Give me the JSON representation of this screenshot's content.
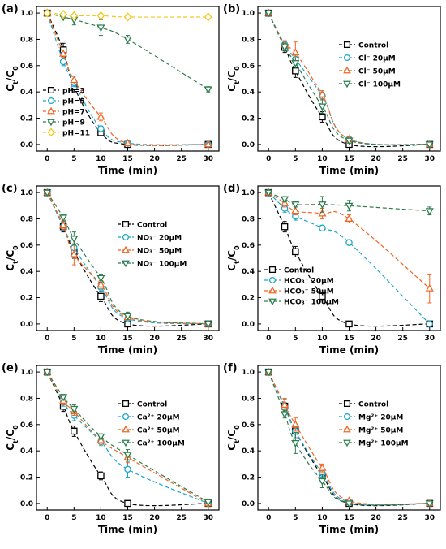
{
  "chart_data": [
    {
      "panel": "(a)",
      "type": "line",
      "xlabel": "Time (min)",
      "ylabel": "C_t/C_0",
      "ylabel_main": "C",
      "ylabel_sub1": "t",
      "ylabel_div": "/C",
      "ylabel_sub2": "0",
      "xlim": [
        -2,
        32
      ],
      "ylim": [
        -0.05,
        1.05
      ],
      "xticks": [
        "0",
        "5",
        "10",
        "15",
        "20",
        "25",
        "30"
      ],
      "yticks": [
        "0.0",
        "0.2",
        "0.4",
        "0.6",
        "0.8",
        "1.0"
      ],
      "legend_position": "bottom-left",
      "series": [
        {
          "name": "pH=3",
          "color": "#000000",
          "marker": "square",
          "x": [
            0,
            3,
            5,
            10,
            15,
            30
          ],
          "y": [
            1.0,
            0.72,
            0.44,
            0.09,
            0.0,
            0.0
          ],
          "err": [
            0.01,
            0.05,
            0.04,
            0.02,
            0.01,
            0.01
          ]
        },
        {
          "name": "pH=5",
          "color": "#1ba7c9",
          "marker": "circle",
          "x": [
            0,
            3,
            5,
            10,
            15,
            30
          ],
          "y": [
            1.0,
            0.63,
            0.47,
            0.12,
            0.01,
            0.0
          ],
          "err": [
            0.01,
            0.03,
            0.03,
            0.02,
            0.01,
            0.01
          ]
        },
        {
          "name": "pH=7",
          "color": "#f26522",
          "marker": "triangle-up",
          "x": [
            0,
            3,
            5,
            10,
            15,
            30
          ],
          "y": [
            1.0,
            0.69,
            0.49,
            0.21,
            0.01,
            0.0
          ],
          "err": [
            0.01,
            0.03,
            0.03,
            0.03,
            0.01,
            0.01
          ]
        },
        {
          "name": "pH=9",
          "color": "#2e7d4f",
          "marker": "triangle-down",
          "x": [
            0,
            3,
            5,
            10,
            15,
            30
          ],
          "y": [
            1.0,
            0.97,
            0.95,
            0.89,
            0.8,
            0.42
          ],
          "err": [
            0.01,
            0.01,
            0.04,
            0.06,
            0.03,
            0.02
          ]
        },
        {
          "name": "pH=11",
          "color": "#f5c518",
          "marker": "diamond",
          "x": [
            0,
            3,
            5,
            10,
            15,
            30
          ],
          "y": [
            1.0,
            0.99,
            0.98,
            0.98,
            0.97,
            0.97
          ],
          "err": [
            0.01,
            0.01,
            0.01,
            0.01,
            0.01,
            0.01
          ]
        }
      ]
    },
    {
      "panel": "(b)",
      "type": "line",
      "xlabel": "Time (min)",
      "ylabel": "C_t/C_0",
      "ylabel_main": "C",
      "ylabel_sub1": "t",
      "ylabel_div": "/C",
      "ylabel_sub2": "0",
      "xlim": [
        -2,
        32
      ],
      "ylim": [
        -0.05,
        1.05
      ],
      "xticks": [
        "0",
        "5",
        "10",
        "15",
        "20",
        "25",
        "30"
      ],
      "yticks": [
        "0.0",
        "0.2",
        "0.4",
        "0.6",
        "0.8",
        "1.0"
      ],
      "legend_position": "top-right",
      "series": [
        {
          "name": "Control",
          "color": "#000000",
          "marker": "square",
          "x": [
            0,
            3,
            5,
            10,
            15,
            30
          ],
          "y": [
            1.0,
            0.74,
            0.56,
            0.21,
            0.0,
            0.0
          ],
          "err": [
            0.01,
            0.04,
            0.05,
            0.04,
            0.01,
            0.01
          ]
        },
        {
          "name": "Cl⁻ 20μM",
          "color": "#1ba7c9",
          "marker": "circle",
          "x": [
            0,
            3,
            5,
            10,
            15,
            30
          ],
          "y": [
            1.0,
            0.76,
            0.65,
            0.37,
            0.04,
            0.0
          ],
          "err": [
            0.01,
            0.03,
            0.04,
            0.03,
            0.02,
            0.01
          ]
        },
        {
          "name": "Cl⁻ 50μM",
          "color": "#f26522",
          "marker": "triangle-up",
          "x": [
            0,
            3,
            5,
            10,
            15,
            30
          ],
          "y": [
            1.0,
            0.76,
            0.7,
            0.38,
            0.04,
            0.0
          ],
          "err": [
            0.01,
            0.03,
            0.08,
            0.03,
            0.02,
            0.01
          ]
        },
        {
          "name": "Cl⁻ 100μM",
          "color": "#2e7d4f",
          "marker": "triangle-down",
          "x": [
            0,
            3,
            5,
            10,
            15,
            30
          ],
          "y": [
            1.0,
            0.74,
            0.62,
            0.29,
            0.03,
            0.0
          ],
          "err": [
            0.01,
            0.03,
            0.04,
            0.05,
            0.02,
            0.01
          ]
        }
      ]
    },
    {
      "panel": "(c)",
      "type": "line",
      "xlabel": "Time (min)",
      "ylabel": "C_t/C_0",
      "ylabel_main": "C",
      "ylabel_sub1": "t",
      "ylabel_div": "/C",
      "ylabel_sub2": "0",
      "xlim": [
        -2,
        32
      ],
      "ylim": [
        -0.05,
        1.05
      ],
      "xticks": [
        "0",
        "5",
        "10",
        "15",
        "20",
        "25",
        "30"
      ],
      "yticks": [
        "0.0",
        "0.2",
        "0.4",
        "0.6",
        "0.8",
        "1.0"
      ],
      "legend_position": "top-right",
      "series": [
        {
          "name": "Control",
          "color": "#000000",
          "marker": "square",
          "x": [
            0,
            3,
            5,
            10,
            15,
            30
          ],
          "y": [
            1.0,
            0.74,
            0.55,
            0.21,
            0.0,
            0.0
          ],
          "err": [
            0.01,
            0.04,
            0.05,
            0.04,
            0.01,
            0.01
          ]
        },
        {
          "name": "NO₃⁻ 20μM",
          "color": "#1ba7c9",
          "marker": "circle",
          "x": [
            0,
            3,
            5,
            10,
            15,
            30
          ],
          "y": [
            1.0,
            0.74,
            0.58,
            0.28,
            0.04,
            0.0
          ],
          "err": [
            0.01,
            0.03,
            0.06,
            0.03,
            0.02,
            0.01
          ]
        },
        {
          "name": "NO₃⁻ 50μM",
          "color": "#f26522",
          "marker": "triangle-up",
          "x": [
            0,
            3,
            5,
            10,
            15,
            30
          ],
          "y": [
            1.0,
            0.75,
            0.53,
            0.3,
            0.05,
            0.0
          ],
          "err": [
            0.01,
            0.03,
            0.08,
            0.03,
            0.02,
            0.01
          ]
        },
        {
          "name": "NO₃⁻ 100μM",
          "color": "#2e7d4f",
          "marker": "triangle-down",
          "x": [
            0,
            3,
            5,
            10,
            15,
            30
          ],
          "y": [
            1.0,
            0.81,
            0.65,
            0.35,
            0.06,
            0.0
          ],
          "err": [
            0.01,
            0.02,
            0.05,
            0.03,
            0.03,
            0.01
          ]
        }
      ]
    },
    {
      "panel": "(d)",
      "type": "line",
      "xlabel": "Time (min)",
      "ylabel": "C_t/C_0",
      "ylabel_main": "C",
      "ylabel_sub1": "t",
      "ylabel_div": "/C",
      "ylabel_sub2": "0",
      "xlim": [
        -2,
        32
      ],
      "ylim": [
        -0.05,
        1.05
      ],
      "xticks": [
        "0",
        "5",
        "10",
        "15",
        "20",
        "25",
        "30"
      ],
      "yticks": [
        "0.0",
        "0.2",
        "0.4",
        "0.6",
        "0.8",
        "1.0"
      ],
      "legend_position": "bottom-left",
      "series": [
        {
          "name": "Control",
          "color": "#000000",
          "marker": "square",
          "x": [
            0,
            3,
            5,
            10,
            15,
            30
          ],
          "y": [
            1.0,
            0.74,
            0.55,
            0.21,
            0.0,
            0.0
          ],
          "err": [
            0.01,
            0.04,
            0.04,
            0.03,
            0.01,
            0.01
          ]
        },
        {
          "name": "HCO₃⁻ 20μM",
          "color": "#1ba7c9",
          "marker": "circle",
          "x": [
            0,
            3,
            5,
            10,
            15,
            30
          ],
          "y": [
            1.0,
            0.88,
            0.82,
            0.73,
            0.62,
            0.0
          ],
          "err": [
            0.01,
            0.03,
            0.03,
            0.02,
            0.02,
            0.01
          ]
        },
        {
          "name": "HCO₃⁻ 50μM",
          "color": "#f26522",
          "marker": "triangle-up",
          "x": [
            0,
            3,
            5,
            10,
            15,
            30
          ],
          "y": [
            1.0,
            0.92,
            0.86,
            0.84,
            0.8,
            0.27
          ],
          "err": [
            0.01,
            0.03,
            0.03,
            0.04,
            0.03,
            0.11
          ]
        },
        {
          "name": "HCO₃⁻ 100μM",
          "color": "#2e7d4f",
          "marker": "triangle-down",
          "x": [
            0,
            3,
            5,
            10,
            15,
            30
          ],
          "y": [
            1.0,
            0.95,
            0.91,
            0.91,
            0.9,
            0.86
          ],
          "err": [
            0.01,
            0.02,
            0.02,
            0.06,
            0.04,
            0.03
          ]
        }
      ]
    },
    {
      "panel": "(e)",
      "type": "line",
      "xlabel": "Time (min)",
      "ylabel": "C_t/C_0",
      "ylabel_main": "C",
      "ylabel_sub1": "t",
      "ylabel_div": "/C",
      "ylabel_sub2": "0",
      "xlim": [
        -2,
        32
      ],
      "ylim": [
        -0.05,
        1.05
      ],
      "xticks": [
        "0",
        "5",
        "10",
        "15",
        "20",
        "25",
        "30"
      ],
      "yticks": [
        "0.0",
        "0.2",
        "0.4",
        "0.6",
        "0.8",
        "1.0"
      ],
      "legend_position": "top-right",
      "series": [
        {
          "name": "Control",
          "color": "#000000",
          "marker": "square",
          "x": [
            0,
            3,
            5,
            10,
            15,
            30
          ],
          "y": [
            1.0,
            0.74,
            0.55,
            0.21,
            0.0,
            0.0
          ],
          "err": [
            0.01,
            0.04,
            0.04,
            0.03,
            0.01,
            0.01
          ]
        },
        {
          "name": "Ca²⁺ 20μM",
          "color": "#1ba7c9",
          "marker": "circle",
          "x": [
            0,
            3,
            5,
            10,
            15,
            30
          ],
          "y": [
            1.0,
            0.77,
            0.67,
            0.47,
            0.26,
            0.0
          ],
          "err": [
            0.01,
            0.03,
            0.04,
            0.03,
            0.06,
            0.01
          ]
        },
        {
          "name": "Ca²⁺ 50μM",
          "color": "#f26522",
          "marker": "triangle-up",
          "x": [
            0,
            3,
            5,
            10,
            15,
            30
          ],
          "y": [
            1.0,
            0.78,
            0.7,
            0.48,
            0.35,
            0.0
          ],
          "err": [
            0.01,
            0.03,
            0.03,
            0.03,
            0.04,
            0.01
          ]
        },
        {
          "name": "Ca²⁺ 100μM",
          "color": "#2e7d4f",
          "marker": "triangle-down",
          "x": [
            0,
            3,
            5,
            10,
            15,
            30
          ],
          "y": [
            1.0,
            0.81,
            0.72,
            0.51,
            0.37,
            0.01
          ],
          "err": [
            0.01,
            0.02,
            0.03,
            0.02,
            0.04,
            0.01
          ]
        }
      ]
    },
    {
      "panel": "(f)",
      "type": "line",
      "xlabel": "Time (min)",
      "ylabel": "C_t/C_0",
      "ylabel_main": "C",
      "ylabel_sub1": "t",
      "ylabel_div": "/C",
      "ylabel_sub2": "0",
      "xlim": [
        -2,
        32
      ],
      "ylim": [
        -0.05,
        1.05
      ],
      "xticks": [
        "0",
        "5",
        "10",
        "15",
        "20",
        "25",
        "30"
      ],
      "yticks": [
        "0.0",
        "0.2",
        "0.4",
        "0.6",
        "0.8",
        "1.0"
      ],
      "legend_position": "top-right",
      "series": [
        {
          "name": "Control",
          "color": "#000000",
          "marker": "square",
          "x": [
            0,
            3,
            5,
            10,
            15,
            30
          ],
          "y": [
            1.0,
            0.74,
            0.55,
            0.21,
            0.0,
            0.0
          ],
          "err": [
            0.01,
            0.05,
            0.05,
            0.05,
            0.01,
            0.01
          ]
        },
        {
          "name": "Mg²⁺ 20μM",
          "color": "#1ba7c9",
          "marker": "circle",
          "x": [
            0,
            3,
            5,
            10,
            15,
            30
          ],
          "y": [
            1.0,
            0.73,
            0.55,
            0.23,
            0.01,
            0.0
          ],
          "err": [
            0.01,
            0.04,
            0.05,
            0.03,
            0.01,
            0.01
          ]
        },
        {
          "name": "Mg²⁺ 50μM",
          "color": "#f26522",
          "marker": "triangle-up",
          "x": [
            0,
            3,
            5,
            10,
            15,
            30
          ],
          "y": [
            1.0,
            0.75,
            0.6,
            0.27,
            0.02,
            0.0
          ],
          "err": [
            0.01,
            0.05,
            0.05,
            0.03,
            0.01,
            0.01
          ]
        },
        {
          "name": "Mg²⁺ 100μM",
          "color": "#2e7d4f",
          "marker": "triangle-down",
          "x": [
            0,
            3,
            5,
            10,
            15,
            30
          ],
          "y": [
            1.0,
            0.68,
            0.46,
            0.17,
            0.0,
            0.0
          ],
          "err": [
            0.01,
            0.03,
            0.08,
            0.05,
            0.01,
            0.01
          ]
        }
      ]
    }
  ]
}
